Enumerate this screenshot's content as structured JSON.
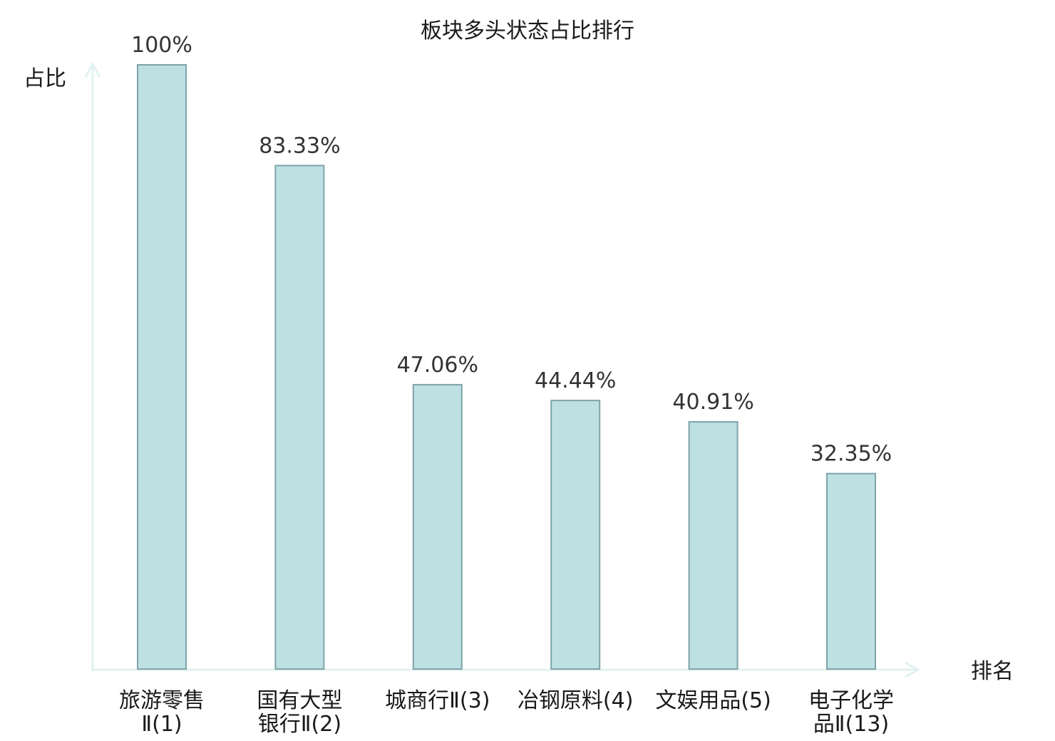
{
  "chart_data": {
    "type": "bar",
    "title": "板块多头状态占比排行",
    "xlabel": "排名",
    "ylabel": "占比",
    "ylim": [
      0,
      100
    ],
    "grid": false,
    "categories": [
      [
        "旅游零售",
        "Ⅱ(1)"
      ],
      [
        "国有大型",
        "银行Ⅱ(2)"
      ],
      [
        "城商行Ⅱ(3)"
      ],
      [
        "冶钢原料(4)"
      ],
      [
        "文娱用品(5)"
      ],
      [
        "电子化学",
        "品Ⅱ(13)"
      ]
    ],
    "values": [
      100,
      83.33,
      47.06,
      44.44,
      40.91,
      32.35
    ],
    "value_labels": [
      "100%",
      "83.33%",
      "47.06%",
      "44.44%",
      "40.91%",
      "32.35%"
    ],
    "highlight_index": 5,
    "colors": {
      "bar_fill": "#bde0e3",
      "bar_stroke": "#7fa3a8",
      "axis": "#e0f2ef",
      "highlight_text": "#e31a1c",
      "text": "#1a1a1a",
      "value_text": "#333333"
    }
  }
}
